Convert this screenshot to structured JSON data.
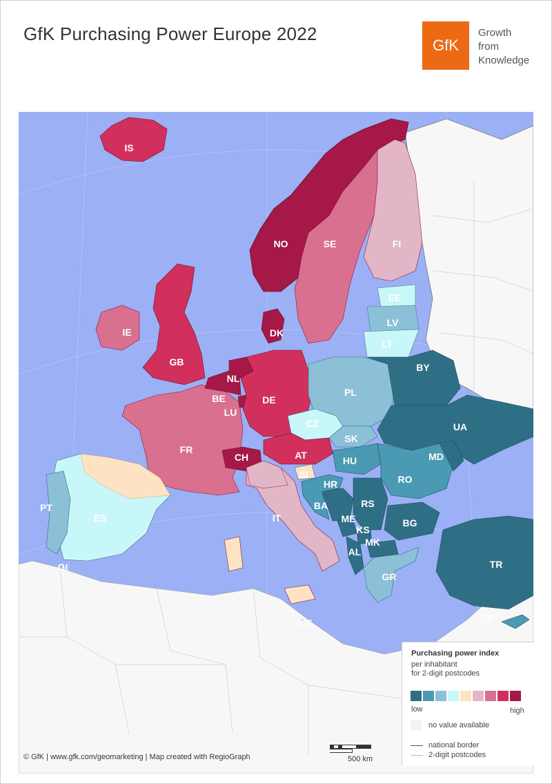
{
  "title": "GfK Purchasing Power Europe 2022",
  "logo": {
    "mark": "GfK",
    "tagline": [
      "Growth",
      "from",
      "Knowledge"
    ],
    "color": "#ec6a14"
  },
  "map": {
    "sea_color": "#9bb0f5",
    "no_data_color": "#f7f7f7",
    "countries": [
      {
        "code": "IS",
        "class": 8
      },
      {
        "code": "NO",
        "class": 9
      },
      {
        "code": "SE",
        "class": 7
      },
      {
        "code": "FI",
        "class": 6
      },
      {
        "code": "EE",
        "class": 4
      },
      {
        "code": "LV",
        "class": 3
      },
      {
        "code": "LT",
        "class": 4
      },
      {
        "code": "DK",
        "class": 9
      },
      {
        "code": "IE",
        "class": 7
      },
      {
        "code": "GB",
        "class": 8
      },
      {
        "code": "NL",
        "class": 9
      },
      {
        "code": "BE",
        "class": 9
      },
      {
        "code": "LU",
        "class": 9
      },
      {
        "code": "DE",
        "class": 8
      },
      {
        "code": "PL",
        "class": 3
      },
      {
        "code": "BY",
        "class": 1
      },
      {
        "code": "CZ",
        "class": 4
      },
      {
        "code": "SK",
        "class": 3
      },
      {
        "code": "UA",
        "class": 1
      },
      {
        "code": "FR",
        "class": 7
      },
      {
        "code": "CH",
        "class": 9
      },
      {
        "code": "AT",
        "class": 8
      },
      {
        "code": "HU",
        "class": 2
      },
      {
        "code": "MD",
        "class": 1
      },
      {
        "code": "SI",
        "class": 5
      },
      {
        "code": "HR",
        "class": 2
      },
      {
        "code": "RO",
        "class": 2
      },
      {
        "code": "PT",
        "class": 3
      },
      {
        "code": "ES",
        "class": 4
      },
      {
        "code": "IT",
        "class": 6
      },
      {
        "code": "BA",
        "class": 1
      },
      {
        "code": "RS",
        "class": 1
      },
      {
        "code": "ME",
        "class": 1
      },
      {
        "code": "KS",
        "class": 1
      },
      {
        "code": "BG",
        "class": 1
      },
      {
        "code": "MK",
        "class": 1
      },
      {
        "code": "AL",
        "class": 1
      },
      {
        "code": "GR",
        "class": 3
      },
      {
        "code": "TR",
        "class": 1
      },
      {
        "code": "GI",
        "class": 0
      },
      {
        "code": "MT",
        "class": 0
      },
      {
        "code": "CY",
        "class": 2
      }
    ]
  },
  "legend": {
    "title": "Purchasing power index",
    "subtitle": [
      "per inhabitant",
      "for 2-digit postcodes"
    ],
    "colors": [
      "#2f6f86",
      "#4b9ab3",
      "#8cc0d6",
      "#c8f7f9",
      "#fde3c4",
      "#e2b6c6",
      "#d9708f",
      "#d1305c",
      "#a51847"
    ],
    "low_label": "low",
    "high_label": "high",
    "no_value_label": "no value available",
    "national_border_label": "national border",
    "postcode_label": "2-digit postcodes"
  },
  "scale": {
    "label": "500 km"
  },
  "credits": "© GfK | www.gfk.com/geomarketing | Map created with RegioGraph"
}
